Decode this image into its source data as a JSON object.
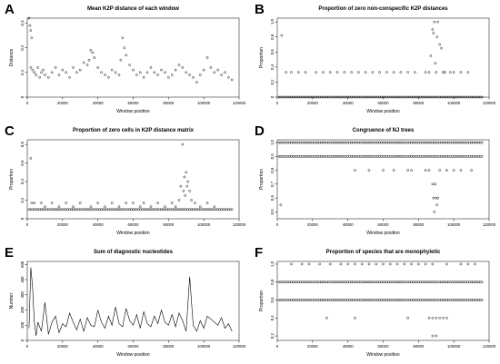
{
  "figure": {
    "background": "#ffffff",
    "point_color": "#000000"
  },
  "chart_data": [
    {
      "panel": "A",
      "type": "scatter",
      "title": "Mean K2P distance of each window",
      "xlabel": "Window position",
      "ylabel": "Distance",
      "xlim": [
        0,
        120000
      ],
      "ylim": [
        0,
        0.32
      ],
      "xticks": [
        0,
        20000,
        40000,
        60000,
        80000,
        100000,
        120000
      ],
      "yticks": [
        0.0,
        0.1,
        0.2,
        0.3
      ],
      "ytick_labels": [
        "0",
        "0.1",
        "0.2",
        "0.3"
      ],
      "series": [
        {
          "mode": "points",
          "x": [
            1000,
            1500,
            2000,
            2500,
            2000,
            3000,
            4000,
            5000,
            6000,
            7000,
            8000,
            9000,
            10000,
            12000,
            14000,
            16000,
            18000,
            20000,
            22000,
            24000,
            26000,
            28000,
            30000,
            32000,
            34000,
            35000,
            36000,
            37000,
            38000,
            40000,
            42000,
            44000,
            46000,
            48000,
            50000,
            52000,
            53000,
            54000,
            55000,
            56000,
            58000,
            60000,
            62000,
            64000,
            66000,
            68000,
            70000,
            72000,
            74000,
            76000,
            78000,
            80000,
            82000,
            84000,
            86000,
            88000,
            90000,
            92000,
            94000,
            96000,
            98000,
            100000,
            102000,
            104000,
            106000,
            108000,
            110000,
            112000,
            114000,
            116000
          ],
          "y": [
            0.32,
            0.29,
            0.27,
            0.24,
            0.12,
            0.11,
            0.1,
            0.09,
            0.12,
            0.08,
            0.1,
            0.11,
            0.09,
            0.08,
            0.1,
            0.12,
            0.09,
            0.11,
            0.1,
            0.08,
            0.12,
            0.1,
            0.11,
            0.14,
            0.13,
            0.15,
            0.19,
            0.18,
            0.16,
            0.12,
            0.1,
            0.09,
            0.08,
            0.11,
            0.1,
            0.09,
            0.15,
            0.24,
            0.2,
            0.17,
            0.13,
            0.11,
            0.09,
            0.1,
            0.08,
            0.1,
            0.12,
            0.1,
            0.09,
            0.11,
            0.1,
            0.08,
            0.09,
            0.11,
            0.13,
            0.12,
            0.1,
            0.09,
            0.08,
            0.06,
            0.09,
            0.11,
            0.16,
            0.12,
            0.1,
            0.11,
            0.09,
            0.1,
            0.08,
            0.07
          ]
        }
      ]
    },
    {
      "panel": "B",
      "type": "scatter",
      "title": "Proportion of zero non-conspecific K2P distances",
      "xlabel": "Window position",
      "ylabel": "Proportion",
      "xlim": [
        0,
        120000
      ],
      "ylim": [
        0,
        1.05
      ],
      "xticks": [
        0,
        20000,
        40000,
        60000,
        80000,
        100000,
        120000
      ],
      "yticks": [
        0.0,
        0.2,
        0.4,
        0.6,
        0.8,
        1.0
      ],
      "ytick_labels": [
        "0",
        "0.2",
        "0.4",
        "0.6",
        "0.8",
        "1.0"
      ],
      "series": [
        {
          "mode": "baseline",
          "xrange": [
            1000,
            116000
          ],
          "y": 0
        },
        {
          "mode": "points",
          "x": [
            2500,
            5000,
            8000,
            12000,
            16000,
            22000,
            26000,
            30000,
            34000,
            38000,
            42000,
            46000,
            50000,
            54000,
            58000,
            62000,
            66000,
            70000,
            74000,
            78000,
            84000,
            86000,
            87000,
            88000,
            88500,
            89000,
            89500,
            90000,
            90500,
            91000,
            92000,
            93000,
            94000,
            95000,
            98000,
            100000,
            104000,
            108000
          ],
          "y": [
            0.82,
            0.33,
            0.33,
            0.33,
            0.33,
            0.33,
            0.33,
            0.33,
            0.33,
            0.33,
            0.33,
            0.33,
            0.33,
            0.33,
            0.33,
            0.33,
            0.33,
            0.33,
            0.33,
            0.33,
            0.33,
            0.33,
            0.55,
            0.9,
            0.85,
            1.0,
            0.45,
            0.33,
            0.8,
            1.0,
            0.7,
            0.65,
            0.33,
            0.33,
            0.33,
            0.33,
            0.33,
            0.33
          ]
        }
      ]
    },
    {
      "panel": "C",
      "type": "scatter",
      "title": "Proportion of zero cells in K2P distance matrix",
      "xlabel": "Window position",
      "ylabel": "Proportion",
      "xlim": [
        0,
        120000
      ],
      "ylim": [
        0,
        0.85
      ],
      "xticks": [
        0,
        20000,
        40000,
        60000,
        80000,
        100000,
        120000
      ],
      "yticks": [
        0.0,
        0.2,
        0.4,
        0.6,
        0.8
      ],
      "ytick_labels": [
        "0",
        "0.2",
        "0.4",
        "0.6",
        "0.8"
      ],
      "series": [
        {
          "mode": "baseline",
          "xrange": [
            1000,
            116000
          ],
          "y": 0.1
        },
        {
          "mode": "points",
          "x": [
            2000,
            2500,
            4000,
            8000,
            10000,
            14000,
            18000,
            22000,
            26000,
            30000,
            36000,
            40000,
            44000,
            48000,
            52000,
            56000,
            60000,
            64000,
            66000,
            70000,
            74000,
            78000,
            82000,
            84000,
            86000,
            87000,
            88000,
            88500,
            89000,
            89500,
            90000,
            90500,
            91000,
            92000,
            93000,
            95000,
            98000,
            102000,
            106000
          ],
          "y": [
            0.65,
            0.17,
            0.17,
            0.17,
            0.13,
            0.17,
            0.13,
            0.17,
            0.13,
            0.17,
            0.13,
            0.17,
            0.13,
            0.17,
            0.13,
            0.17,
            0.17,
            0.13,
            0.17,
            0.13,
            0.17,
            0.13,
            0.17,
            0.13,
            0.2,
            0.35,
            0.8,
            0.3,
            0.45,
            0.25,
            0.5,
            0.35,
            0.4,
            0.3,
            0.2,
            0.17,
            0.13,
            0.17,
            0.13
          ]
        }
      ]
    },
    {
      "panel": "D",
      "type": "scatter",
      "title": "Congruence of NJ trees",
      "xlabel": "Window position",
      "ylabel": "Proportion",
      "xlim": [
        0,
        120000
      ],
      "ylim": [
        0.45,
        1.02
      ],
      "xticks": [
        0,
        20000,
        40000,
        60000,
        80000,
        100000,
        120000
      ],
      "yticks": [
        0.5,
        0.6,
        0.7,
        0.8,
        0.9,
        1.0
      ],
      "ytick_labels": [
        "0.5",
        "0.6",
        "0.7",
        "0.8",
        "0.9",
        "1.0"
      ],
      "series": [
        {
          "mode": "baseline",
          "xrange": [
            1000,
            116000
          ],
          "y": 1.0
        },
        {
          "mode": "baseline",
          "xrange": [
            1000,
            116000
          ],
          "y": 0.9
        },
        {
          "mode": "points",
          "x": [
            2000,
            44000,
            52000,
            60000,
            66000,
            74000,
            76000,
            84000,
            86000,
            88000,
            88500,
            89000,
            89500,
            90000,
            90500,
            91000,
            92000,
            96000,
            100000,
            104000,
            110000
          ],
          "y": [
            0.55,
            0.8,
            0.8,
            0.8,
            0.8,
            0.8,
            0.8,
            0.8,
            0.8,
            0.7,
            0.6,
            0.5,
            0.7,
            0.6,
            0.55,
            0.6,
            0.8,
            0.8,
            0.8,
            0.8,
            0.8
          ]
        }
      ]
    },
    {
      "panel": "E",
      "type": "line",
      "title": "Sum of diagnostic nucleotides",
      "xlabel": "Window position",
      "ylabel": "Number",
      "xlim": [
        0,
        120000
      ],
      "ylim": [
        0,
        520
      ],
      "xticks": [
        0,
        20000,
        40000,
        60000,
        80000,
        100000,
        120000
      ],
      "yticks": [
        0,
        100,
        200,
        300,
        400,
        500
      ],
      "ytick_labels": [
        "0",
        "100",
        "200",
        "300",
        "400",
        "500"
      ],
      "series": [
        {
          "mode": "line",
          "x": [
            1000,
            2000,
            3000,
            4000,
            5000,
            6000,
            8000,
            10000,
            12000,
            14000,
            16000,
            18000,
            20000,
            22000,
            24000,
            26000,
            28000,
            30000,
            32000,
            34000,
            36000,
            38000,
            40000,
            42000,
            44000,
            46000,
            48000,
            50000,
            52000,
            54000,
            56000,
            58000,
            60000,
            62000,
            64000,
            66000,
            68000,
            70000,
            72000,
            74000,
            76000,
            78000,
            80000,
            82000,
            84000,
            86000,
            88000,
            90000,
            92000,
            94000,
            96000,
            98000,
            100000,
            102000,
            104000,
            106000,
            108000,
            110000,
            112000,
            114000,
            116000
          ],
          "y": [
            80,
            480,
            350,
            120,
            30,
            120,
            60,
            250,
            40,
            120,
            160,
            50,
            110,
            90,
            180,
            120,
            70,
            140,
            60,
            150,
            100,
            90,
            200,
            120,
            80,
            160,
            100,
            220,
            110,
            90,
            210,
            130,
            100,
            170,
            80,
            190,
            110,
            90,
            160,
            110,
            200,
            120,
            100,
            170,
            90,
            180,
            130,
            60,
            420,
            100,
            60,
            130,
            80,
            160,
            140,
            120,
            100,
            150,
            80,
            110,
            60
          ]
        }
      ]
    },
    {
      "panel": "F",
      "type": "scatter",
      "title": "Proportion of species that are monophyletic",
      "xlabel": "Window position",
      "ylabel": "Proportion",
      "xlim": [
        0,
        120000
      ],
      "ylim": [
        0.15,
        1.03
      ],
      "xticks": [
        0,
        20000,
        40000,
        60000,
        80000,
        100000,
        120000
      ],
      "yticks": [
        0.2,
        0.4,
        0.6,
        0.8,
        1.0
      ],
      "ytick_labels": [
        "0.2",
        "0.4",
        "0.6",
        "0.8",
        "1.0"
      ],
      "series": [
        {
          "mode": "baseline",
          "xrange": [
            1000,
            116000
          ],
          "y": 0.8
        },
        {
          "mode": "baseline",
          "xrange": [
            1000,
            116000
          ],
          "y": 0.6
        },
        {
          "mode": "points",
          "x": [
            8000,
            14000,
            18000,
            24000,
            30000,
            36000,
            40000,
            44000,
            48000,
            52000,
            56000,
            60000,
            64000,
            68000,
            72000,
            76000,
            80000,
            84000,
            88000,
            96000,
            104000,
            108000,
            112000,
            28000,
            44000,
            74000,
            86000,
            88000,
            90000,
            92000,
            94000,
            96000,
            88000,
            90000
          ],
          "y": [
            1.0,
            1.0,
            1.0,
            1.0,
            1.0,
            1.0,
            1.0,
            1.0,
            1.0,
            1.0,
            1.0,
            1.0,
            1.0,
            1.0,
            1.0,
            1.0,
            1.0,
            1.0,
            1.0,
            1.0,
            1.0,
            1.0,
            1.0,
            0.4,
            0.4,
            0.4,
            0.4,
            0.4,
            0.4,
            0.4,
            0.4,
            0.4,
            0.2,
            0.2
          ]
        }
      ]
    }
  ]
}
